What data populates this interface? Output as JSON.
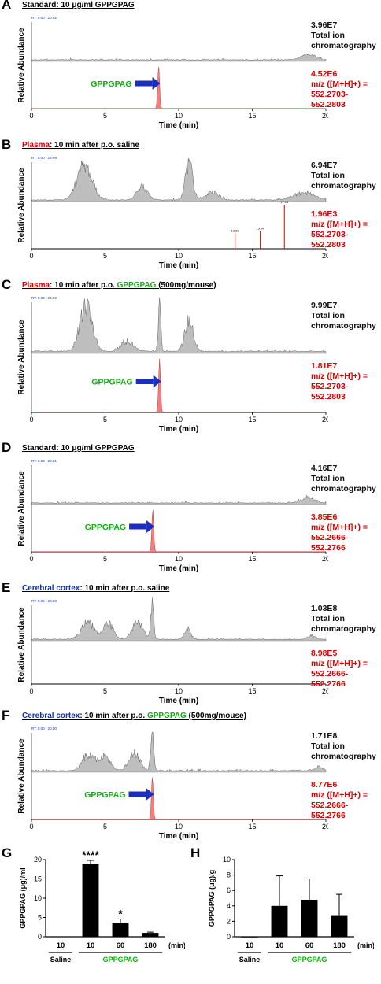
{
  "panels": [
    {
      "letter": "A",
      "title": [
        {
          "t": "Standard:  10 μg/ml GPPGPAG",
          "c": ""
        }
      ],
      "tic_max": "3.96E7",
      "tic_label": [
        "Total ion",
        "chromatography"
      ],
      "xic_max": "4.52E6",
      "xic_label": [
        "m/z ([M+H]+) =",
        "552.2703-552.2803"
      ],
      "arrow": true,
      "arrow_label": "GPPGPAG",
      "rt_label": "RT: 0.00 - 20.02",
      "xlabel": "Time (min)",
      "ylabel": "Relative Abundance",
      "xticks": [
        "0",
        "5",
        "10",
        "15",
        "20"
      ],
      "peak": 8.64,
      "mode": "std",
      "tic_top": [
        "8.64",
        "8.60",
        "8.74",
        "8.78",
        "8.54",
        "8.48"
      ],
      "xic_top": [
        "8.64",
        "8.59",
        "8.74",
        "8.81",
        "8.53",
        "8.46",
        "8.90",
        "9.26",
        "10.86"
      ]
    },
    {
      "letter": "B",
      "title": [
        {
          "t": "Plasma",
          "c": "red"
        },
        {
          "t": ": 10 min after p.o. saline",
          "c": ""
        }
      ],
      "tic_max": "6.94E7",
      "tic_label": [
        "Total ion",
        "chromatography"
      ],
      "xic_max": "1.96E3",
      "xic_label": [
        "m/z ([M+H]+) =",
        "552.2703-552.2803"
      ],
      "arrow": false,
      "rt_label": "RT: 0.00 - 19.99",
      "xlabel": "Time (min)",
      "ylabel": "Relative Abundance",
      "xticks": [
        "0",
        "5",
        "10",
        "15",
        "20"
      ],
      "mode": "plasma_saline",
      "xic_peaks": [
        "13.83",
        "15.54",
        "17.18"
      ]
    },
    {
      "letter": "C",
      "title": [
        {
          "t": "Plasma",
          "c": "red"
        },
        {
          "t": ": 10 min after p.o. ",
          "c": ""
        },
        {
          "t": "GPPGPAG",
          "c": "green"
        },
        {
          "t": " (500mg/mouse)",
          "c": ""
        }
      ],
      "tic_max": "9.99E7",
      "tic_label": [
        "Total ion",
        "chromatography"
      ],
      "xic_max": "1.81E7",
      "xic_label": [
        "m/z ([M+H]+) =",
        "552.2703-552.2803"
      ],
      "arrow": true,
      "arrow_label": "GPPGPAG",
      "rt_label": "RT: 0.00 - 20.02",
      "xlabel": "Time (min)",
      "ylabel": "Relative Abundance",
      "xticks": [
        "0",
        "5",
        "10",
        "15",
        "20"
      ],
      "peak": 8.7,
      "mode": "plasma_gpp"
    },
    {
      "letter": "D",
      "title": [
        {
          "t": "Standard:  10 μg/ml GPPGPAG",
          "c": ""
        }
      ],
      "tic_max": "4.16E7",
      "tic_label": [
        "Total ion",
        "chromatography"
      ],
      "xic_max": "3.85E6",
      "xic_label": [
        "m/z ([M+H]+) =",
        "552.2666-552.2766"
      ],
      "arrow": true,
      "arrow_label": "GPPGPAG",
      "rt_label": "RT: 0.00 - 20.01",
      "xlabel": "Time (min)",
      "ylabel": "Relative Abundance",
      "xticks": [
        "0",
        "5",
        "10",
        "15",
        "20"
      ],
      "peak": 8.24,
      "mode": "std"
    },
    {
      "letter": "E",
      "title": [
        {
          "t": "Cerebral cortex",
          "c": "blue"
        },
        {
          "t": ": 10 min after p.o. saline",
          "c": ""
        }
      ],
      "tic_max": "1.03E8",
      "tic_label": [
        "Total ion",
        "chromatography"
      ],
      "xic_max": "8.98E5",
      "xic_label": [
        "m/z ([M+H]+) =",
        "552.2666-552.2766"
      ],
      "arrow": false,
      "rt_label": "RT: 0.00 - 20.00",
      "xlabel": "Time (min)",
      "ylabel": "Relative Abundance",
      "xticks": [
        "0",
        "5",
        "10",
        "15",
        "20"
      ],
      "mode": "cortex_saline"
    },
    {
      "letter": "F",
      "title": [
        {
          "t": "Cerebral cortex",
          "c": "blue"
        },
        {
          "t": ":  10 min after p.o. ",
          "c": ""
        },
        {
          "t": "GPPGPAG",
          "c": "green"
        },
        {
          "t": " (500mg/mouse)",
          "c": ""
        }
      ],
      "tic_max": "1.71E8",
      "tic_label": [
        "Total ion",
        "chromatography"
      ],
      "xic_max": "8.77E6",
      "xic_label": [
        "m/z ([M+H]+) =",
        "552.2666-552.2766"
      ],
      "arrow": true,
      "arrow_label": "GPPGPAG",
      "rt_label": "RT: 0.00 - 20.00",
      "xlabel": "Time (min)",
      "ylabel": "Relative Abundance",
      "xticks": [
        "0",
        "5",
        "10",
        "15",
        "20"
      ],
      "peak": 8.21,
      "mode": "cortex_gpp"
    }
  ],
  "chart_data": [
    {
      "type": "bar",
      "panel": "G",
      "ylabel": "GPPGPAG (μg)/ml",
      "ylim": [
        0,
        20
      ],
      "yticks": [
        "0",
        "5",
        "10",
        "15",
        "20"
      ],
      "categories": [
        "10",
        "10",
        "60",
        "180"
      ],
      "values": [
        0.1,
        18.8,
        3.6,
        1.0
      ],
      "errors": [
        0,
        1.0,
        1.0,
        0.2
      ],
      "annotations": [
        "",
        "****",
        "*",
        ""
      ],
      "unit_label": "(min)",
      "groups": [
        {
          "label": "Saline",
          "span": [
            0,
            0
          ]
        },
        {
          "label": "GPPGPAG",
          "span": [
            1,
            3
          ],
          "color": "#10b010"
        }
      ]
    },
    {
      "type": "bar",
      "panel": "H",
      "ylabel": "GPPGPAG (μg)/g",
      "ylim": [
        0,
        10
      ],
      "yticks": [
        "0",
        "2",
        "4",
        "6",
        "8",
        "10"
      ],
      "categories": [
        "10",
        "10",
        "60",
        "180"
      ],
      "values": [
        0.0,
        4.0,
        4.8,
        2.8
      ],
      "errors": [
        0,
        3.9,
        2.7,
        2.7
      ],
      "annotations": [
        "",
        "",
        "",
        ""
      ],
      "unit_label": "(min)",
      "groups": [
        {
          "label": "Saline",
          "span": [
            0,
            0
          ]
        },
        {
          "label": "GPPGPAG",
          "span": [
            1,
            3
          ],
          "color": "#10b010"
        }
      ]
    }
  ],
  "colors": {
    "xic_fill": "#f08080",
    "tic_line": "#333",
    "red": "#e00000",
    "green": "#10b010",
    "blue": "#1030c0",
    "arrow": "#1a2fc0"
  }
}
